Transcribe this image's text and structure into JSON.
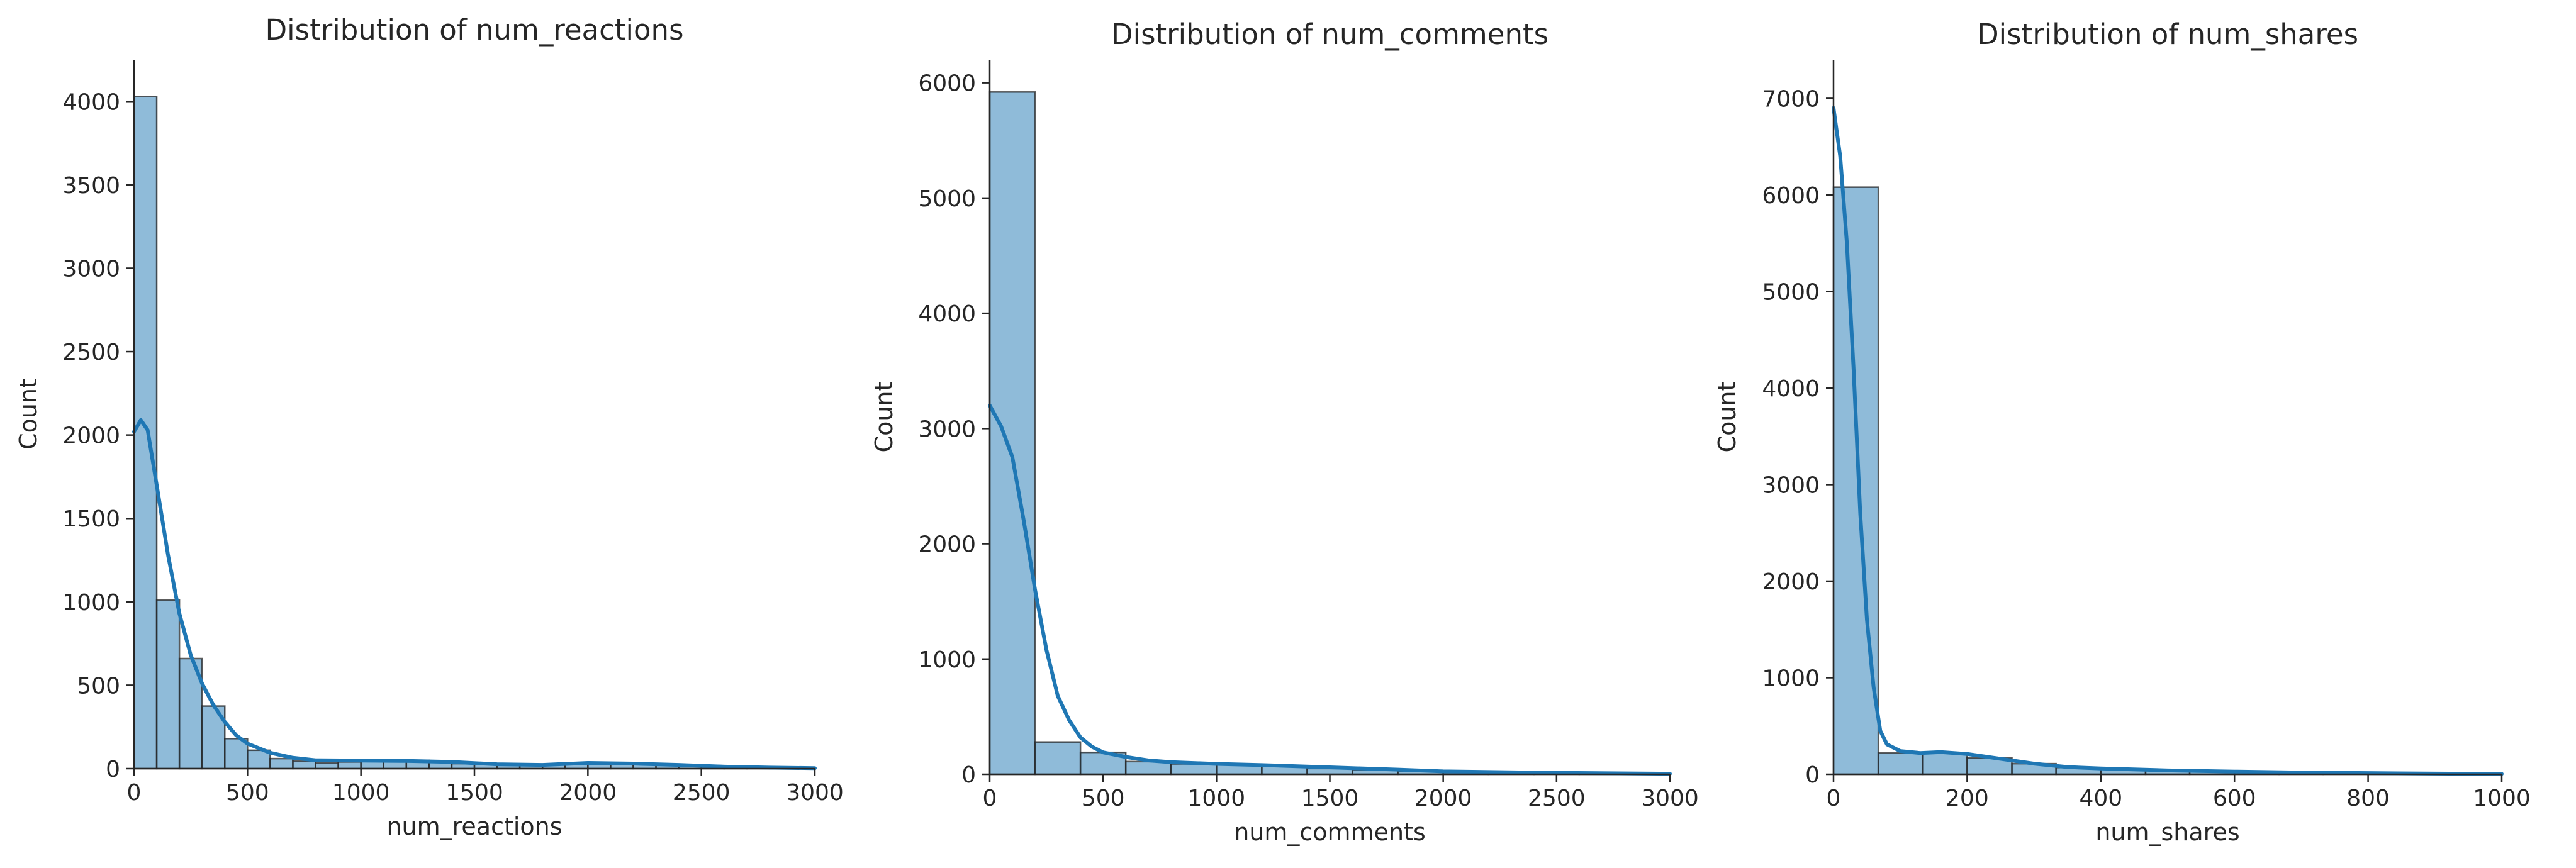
{
  "chart_data": [
    {
      "type": "bar",
      "subtype": "histogram-with-kde",
      "title": "Distribution of num_reactions",
      "xlabel": "num_reactions",
      "ylabel": "Count",
      "xlim": [
        0,
        3000
      ],
      "ylim": [
        0,
        4250
      ],
      "xticks": [
        0,
        500,
        1000,
        1500,
        2000,
        2500,
        3000
      ],
      "yticks": [
        0,
        500,
        1000,
        1500,
        2000,
        2500,
        3000,
        3500,
        4000
      ],
      "grid": false,
      "color": "#1f77b4",
      "bins": [
        {
          "x0": 0,
          "x1": 100,
          "count": 4030
        },
        {
          "x0": 100,
          "x1": 200,
          "count": 1010
        },
        {
          "x0": 200,
          "x1": 300,
          "count": 660
        },
        {
          "x0": 300,
          "x1": 400,
          "count": 375
        },
        {
          "x0": 400,
          "x1": 500,
          "count": 180
        },
        {
          "x0": 500,
          "x1": 600,
          "count": 110
        },
        {
          "x0": 600,
          "x1": 700,
          "count": 60
        },
        {
          "x0": 700,
          "x1": 800,
          "count": 45
        },
        {
          "x0": 800,
          "x1": 900,
          "count": 35
        },
        {
          "x0": 900,
          "x1": 1000,
          "count": 40
        },
        {
          "x0": 1000,
          "x1": 1100,
          "count": 45
        },
        {
          "x0": 1100,
          "x1": 1200,
          "count": 50
        },
        {
          "x0": 1200,
          "x1": 1300,
          "count": 50
        },
        {
          "x0": 1300,
          "x1": 1400,
          "count": 40
        },
        {
          "x0": 1400,
          "x1": 1500,
          "count": 30
        },
        {
          "x0": 1500,
          "x1": 1600,
          "count": 25
        },
        {
          "x0": 1600,
          "x1": 1700,
          "count": 20
        },
        {
          "x0": 1700,
          "x1": 1800,
          "count": 20
        },
        {
          "x0": 1800,
          "x1": 1900,
          "count": 25
        },
        {
          "x0": 1900,
          "x1": 2000,
          "count": 30
        },
        {
          "x0": 2000,
          "x1": 2100,
          "count": 35
        },
        {
          "x0": 2100,
          "x1": 2200,
          "count": 30
        },
        {
          "x0": 2200,
          "x1": 2300,
          "count": 25
        },
        {
          "x0": 2300,
          "x1": 2400,
          "count": 20
        },
        {
          "x0": 2400,
          "x1": 2500,
          "count": 15
        },
        {
          "x0": 2500,
          "x1": 2600,
          "count": 10
        },
        {
          "x0": 2600,
          "x1": 2700,
          "count": 8
        },
        {
          "x0": 2700,
          "x1": 2800,
          "count": 6
        },
        {
          "x0": 2800,
          "x1": 2900,
          "count": 5
        },
        {
          "x0": 2900,
          "x1": 3000,
          "count": 3
        }
      ],
      "kde": {
        "x": [
          0,
          30,
          60,
          100,
          150,
          200,
          250,
          300,
          350,
          400,
          450,
          500,
          600,
          700,
          800,
          1000,
          1200,
          1400,
          1600,
          1800,
          2000,
          2200,
          2400,
          2600,
          2800,
          3000
        ],
        "y": [
          2020,
          2090,
          2030,
          1700,
          1280,
          930,
          680,
          510,
          380,
          280,
          200,
          150,
          95,
          65,
          50,
          48,
          46,
          40,
          26,
          22,
          34,
          30,
          22,
          12,
          6,
          3
        ]
      }
    },
    {
      "type": "bar",
      "subtype": "histogram-with-kde",
      "title": "Distribution of num_comments",
      "xlabel": "num_comments",
      "ylabel": "Count",
      "xlim": [
        0,
        3000
      ],
      "ylim": [
        0,
        6200
      ],
      "xticks": [
        0,
        500,
        1000,
        1500,
        2000,
        2500,
        3000
      ],
      "yticks": [
        0,
        1000,
        2000,
        3000,
        4000,
        5000,
        6000
      ],
      "grid": false,
      "color": "#1f77b4",
      "bins": [
        {
          "x0": 0,
          "x1": 200,
          "count": 5920
        },
        {
          "x0": 200,
          "x1": 400,
          "count": 280
        },
        {
          "x0": 400,
          "x1": 600,
          "count": 190
        },
        {
          "x0": 600,
          "x1": 800,
          "count": 110
        },
        {
          "x0": 800,
          "x1": 1000,
          "count": 90
        },
        {
          "x0": 1000,
          "x1": 1200,
          "count": 85
        },
        {
          "x0": 1200,
          "x1": 1400,
          "count": 70
        },
        {
          "x0": 1400,
          "x1": 1600,
          "count": 50
        },
        {
          "x0": 1600,
          "x1": 1800,
          "count": 35
        },
        {
          "x0": 1800,
          "x1": 2000,
          "count": 25
        },
        {
          "x0": 2000,
          "x1": 2200,
          "count": 15
        },
        {
          "x0": 2200,
          "x1": 2400,
          "count": 10
        },
        {
          "x0": 2400,
          "x1": 2600,
          "count": 8
        },
        {
          "x0": 2600,
          "x1": 2800,
          "count": 6
        },
        {
          "x0": 2800,
          "x1": 3000,
          "count": 5
        }
      ],
      "kde": {
        "x": [
          0,
          50,
          100,
          150,
          200,
          250,
          300,
          350,
          400,
          450,
          500,
          600,
          700,
          800,
          1000,
          1200,
          1500,
          1800,
          2000,
          2500,
          3000
        ],
        "y": [
          3200,
          3020,
          2750,
          2200,
          1600,
          1080,
          680,
          470,
          320,
          240,
          190,
          150,
          120,
          105,
          90,
          80,
          60,
          40,
          25,
          12,
          5
        ]
      }
    },
    {
      "type": "bar",
      "subtype": "histogram-with-kde",
      "title": "Distribution of num_shares",
      "xlabel": "num_shares",
      "ylabel": "Count",
      "xlim": [
        0,
        1000
      ],
      "ylim": [
        0,
        7400
      ],
      "xticks": [
        0,
        200,
        400,
        600,
        800,
        1000
      ],
      "yticks": [
        0,
        1000,
        2000,
        3000,
        4000,
        5000,
        6000,
        7000
      ],
      "grid": false,
      "color": "#1f77b4",
      "bins": [
        {
          "x0": 0,
          "x1": 67,
          "count": 6080
        },
        {
          "x0": 67,
          "x1": 133,
          "count": 220
        },
        {
          "x0": 133,
          "x1": 200,
          "count": 220
        },
        {
          "x0": 200,
          "x1": 267,
          "count": 170
        },
        {
          "x0": 267,
          "x1": 333,
          "count": 110
        },
        {
          "x0": 333,
          "x1": 400,
          "count": 70
        },
        {
          "x0": 400,
          "x1": 467,
          "count": 55
        },
        {
          "x0": 467,
          "x1": 533,
          "count": 45
        },
        {
          "x0": 533,
          "x1": 600,
          "count": 35
        },
        {
          "x0": 600,
          "x1": 667,
          "count": 25
        },
        {
          "x0": 667,
          "x1": 733,
          "count": 15
        },
        {
          "x0": 733,
          "x1": 800,
          "count": 12
        },
        {
          "x0": 800,
          "x1": 867,
          "count": 10
        },
        {
          "x0": 867,
          "x1": 933,
          "count": 6
        },
        {
          "x0": 933,
          "x1": 1000,
          "count": 4
        }
      ],
      "kde": {
        "x": [
          0,
          10,
          20,
          30,
          40,
          50,
          60,
          70,
          80,
          100,
          130,
          160,
          200,
          250,
          300,
          350,
          400,
          500,
          600,
          700,
          800,
          900,
          1000
        ],
        "y": [
          6900,
          6400,
          5500,
          4200,
          2700,
          1600,
          900,
          450,
          310,
          240,
          220,
          230,
          210,
          160,
          110,
          75,
          60,
          40,
          28,
          18,
          12,
          7,
          4
        ]
      }
    }
  ]
}
